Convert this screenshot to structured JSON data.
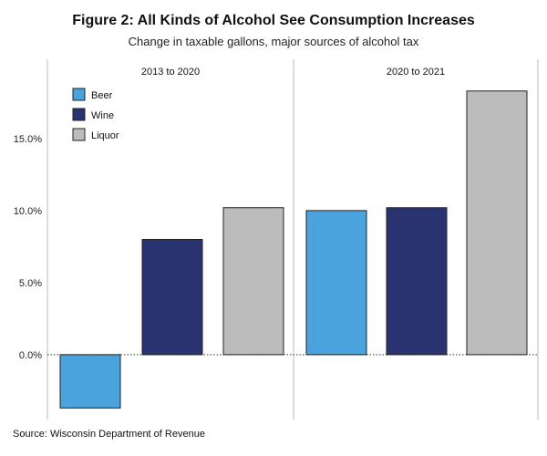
{
  "title": "Figure 2: All Kinds of Alcohol See Consumption Increases",
  "subtitle": "Change in taxable gallons, major sources of alcohol tax",
  "source": "Source: Wisconsin Department of Revenue",
  "colors": {
    "beer": "#4aa3dc",
    "wine": "#283370",
    "liquor": "#bcbcbc",
    "divider": "#bbbbbb",
    "zero_line": "#333333"
  },
  "chart_data": {
    "type": "bar",
    "panels": [
      "2013 to 2020",
      "2020 to 2021"
    ],
    "series": [
      {
        "name": "Beer",
        "values": [
          -3.7,
          10.0
        ]
      },
      {
        "name": "Wine",
        "values": [
          8.0,
          10.2
        ]
      },
      {
        "name": "Liquor",
        "values": [
          10.2,
          18.3
        ]
      }
    ],
    "y_ticks": [
      "0.0%",
      "5.0%",
      "10.0%",
      "15.0%"
    ],
    "y_tick_values": [
      0,
      5,
      10,
      15
    ],
    "ylim": [
      -4.5,
      20.5
    ],
    "ylabel": "",
    "grid": false,
    "legend_position": "top-left"
  }
}
